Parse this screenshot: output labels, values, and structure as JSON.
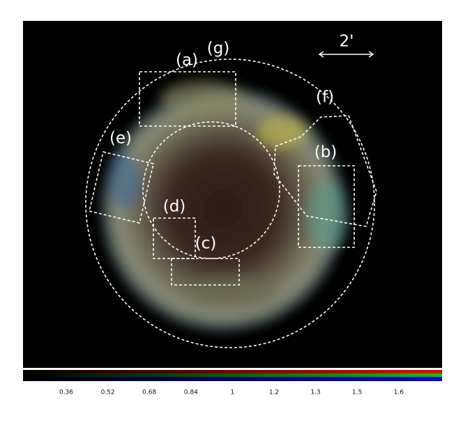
{
  "regions": {
    "a": "(a)",
    "b": "(b)",
    "c": "(c)",
    "d": "(d)",
    "e": "(e)",
    "f": "(f)",
    "g": "(g)"
  },
  "scale_bar": "2'",
  "colorbar": {
    "labels": [
      "0.36",
      "0.52",
      "0.68",
      "0.84",
      "1",
      "1.2",
      "1.3",
      "1.5",
      "1.6"
    ]
  }
}
